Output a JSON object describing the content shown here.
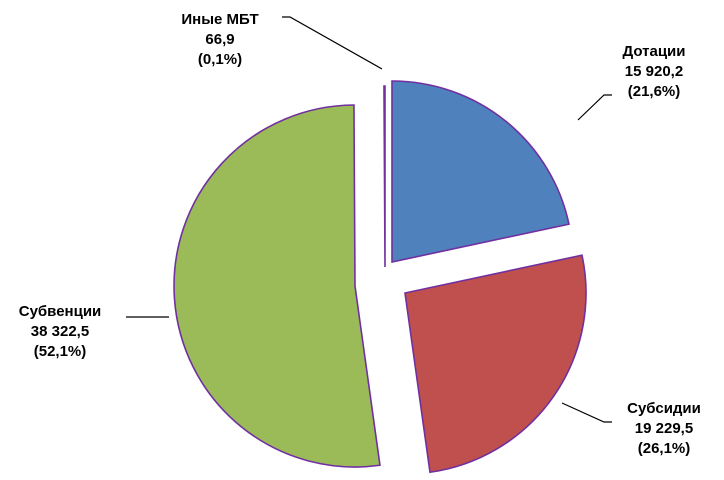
{
  "chart_data": {
    "type": "pie",
    "title": "",
    "start_angle_deg": 0,
    "direction": "clockwise",
    "slice_border_color": "#7030A0",
    "slices": [
      {
        "name": "Дотации",
        "value": 15920.2,
        "value_label": "15 920,2",
        "percent_label": "(21,6%)",
        "color": "#4F81BD"
      },
      {
        "name": "Субсидии",
        "value": 19229.5,
        "value_label": "19 229,5",
        "percent_label": "(26,1%)",
        "color": "#C0504D"
      },
      {
        "name": "Субвенции",
        "value": 38322.5,
        "value_label": "38 322,5",
        "percent_label": "(52,1%)",
        "color": "#9BBB59"
      },
      {
        "name": "Иные МБТ",
        "value": 66.9,
        "value_label": "66,9",
        "percent_label": "(0,1%)",
        "color": "#8064A2"
      }
    ]
  }
}
